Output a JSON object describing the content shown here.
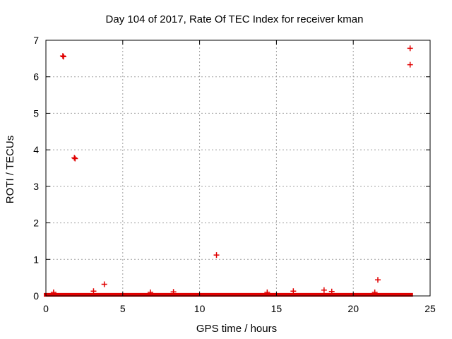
{
  "chart_data": {
    "type": "scatter",
    "title": "Day 104 of 2017, Rate Of TEC Index for receiver kman",
    "xlabel": "GPS time / hours",
    "ylabel": "ROTI / TECUs",
    "xlim": [
      0,
      25
    ],
    "ylim": [
      0,
      7
    ],
    "xticks": [
      0,
      5,
      10,
      15,
      20,
      25
    ],
    "yticks": [
      0,
      1,
      2,
      3,
      4,
      5,
      6,
      7
    ],
    "grid": true,
    "marker": "+",
    "series_color": "#e00000",
    "points": [
      [
        1.1,
        6.57
      ],
      [
        1.15,
        6.55
      ],
      [
        1.85,
        3.78
      ],
      [
        1.9,
        3.76
      ],
      [
        3.8,
        0.32
      ],
      [
        11.1,
        1.12
      ],
      [
        21.6,
        0.44
      ],
      [
        23.7,
        6.78
      ],
      [
        23.7,
        6.33
      ]
    ],
    "baseline_band": {
      "x_range": [
        0.0,
        23.75
      ],
      "y_range": [
        0.0,
        0.08
      ],
      "bumps": [
        {
          "x": 0.5,
          "y": 0.1
        },
        {
          "x": 3.1,
          "y": 0.13
        },
        {
          "x": 6.8,
          "y": 0.1
        },
        {
          "x": 8.3,
          "y": 0.11
        },
        {
          "x": 14.4,
          "y": 0.1
        },
        {
          "x": 16.1,
          "y": 0.13
        },
        {
          "x": 18.1,
          "y": 0.16
        },
        {
          "x": 18.6,
          "y": 0.12
        },
        {
          "x": 21.4,
          "y": 0.1
        }
      ]
    }
  }
}
